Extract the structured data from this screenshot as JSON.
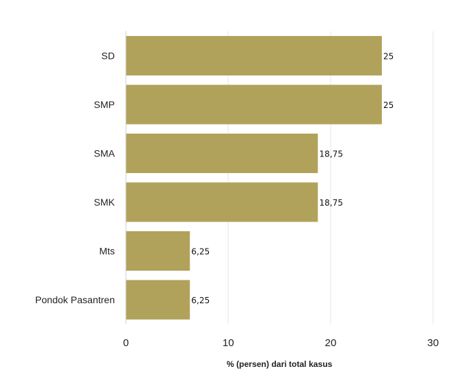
{
  "chart_data": {
    "type": "bar",
    "orientation": "horizontal",
    "categories": [
      "SD",
      "SMP",
      "SMA",
      "SMK",
      "Mts",
      "Pondok Pasantren"
    ],
    "values": [
      25,
      25,
      18.75,
      18.75,
      6.25,
      6.25
    ],
    "value_labels": [
      "25",
      "25",
      "18,75",
      "18,75",
      "6,25",
      "6,25"
    ],
    "title": "",
    "xlabel": "% (persen) dari total kasus",
    "ylabel": "",
    "xlim": [
      0,
      30
    ],
    "xticks": [
      "0",
      "10",
      "20",
      "30"
    ],
    "grid": true,
    "legend": "none",
    "bar_color": "#b1a25b"
  }
}
